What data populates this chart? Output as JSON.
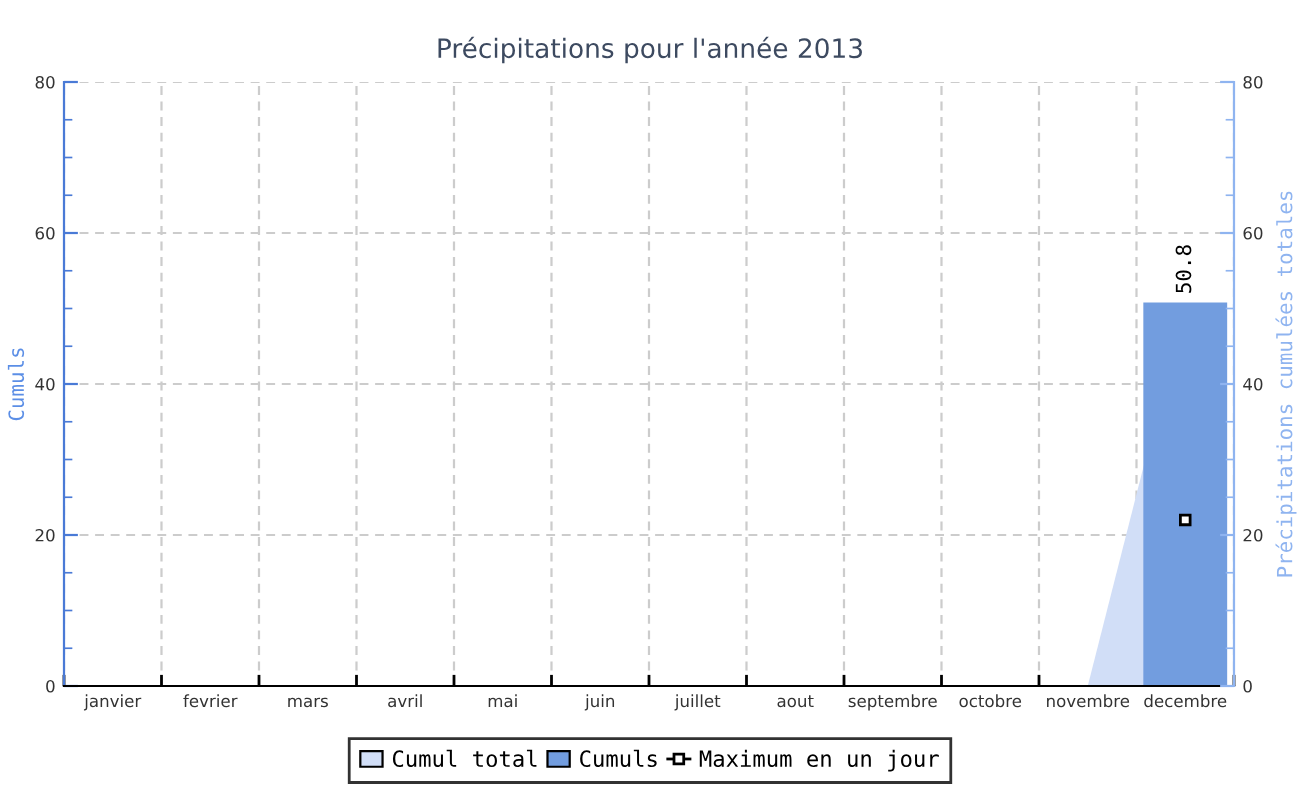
{
  "chart_data": {
    "type": "bar",
    "title": "Précipitations pour l'année 2013",
    "ylabel": "Cumuls",
    "y2label": "Précipitations cumulées totales",
    "categories": [
      "janvier",
      "fevrier",
      "mars",
      "avril",
      "mai",
      "juin",
      "juillet",
      "aout",
      "septembre",
      "octobre",
      "novembre",
      "decembre"
    ],
    "series": [
      {
        "name": "Cumul total",
        "type": "area",
        "color": "#d1def7",
        "values": [
          null,
          null,
          null,
          null,
          null,
          null,
          null,
          null,
          null,
          null,
          0,
          50.8
        ]
      },
      {
        "name": "Cumuls",
        "color": "#729ddf",
        "values": [
          null,
          null,
          null,
          null,
          null,
          null,
          null,
          null,
          null,
          null,
          null,
          50.8
        ],
        "value_labels": [
          null,
          null,
          null,
          null,
          null,
          null,
          null,
          null,
          null,
          null,
          null,
          "50.8"
        ]
      },
      {
        "name": "Maximum en un jour",
        "type": "line",
        "color": "#000000",
        "marker": "square",
        "values": [
          null,
          null,
          null,
          null,
          null,
          null,
          null,
          null,
          null,
          null,
          null,
          22
        ]
      }
    ],
    "ylim": [
      0,
      80
    ],
    "yticks": [
      0,
      {
        "value": 5,
        "label": null
      },
      {
        "value": 10,
        "label": null
      },
      {
        "value": 15,
        "label": null
      },
      20,
      {
        "value": 25,
        "label": null
      },
      {
        "value": 30,
        "label": null
      },
      {
        "value": 35,
        "label": null
      },
      40,
      {
        "value": 45,
        "label": null
      },
      {
        "value": 50,
        "label": null
      },
      {
        "value": 55,
        "label": null
      },
      60,
      {
        "value": 65,
        "label": null
      },
      {
        "value": 70,
        "label": null
      },
      {
        "value": 75,
        "label": null
      },
      80
    ],
    "y2lim": [
      0,
      80
    ],
    "y2ticks": [
      0,
      {
        "value": 5,
        "label": null
      },
      {
        "value": 10,
        "label": null
      },
      {
        "value": 15,
        "label": null
      },
      20,
      {
        "value": 25,
        "label": null
      },
      {
        "value": 30,
        "label": null
      },
      {
        "value": 35,
        "label": null
      },
      40,
      {
        "value": 45,
        "label": null
      },
      {
        "value": 50,
        "label": null
      },
      {
        "value": 55,
        "label": null
      },
      60,
      {
        "value": 65,
        "label": null
      },
      {
        "value": 70,
        "label": null
      },
      {
        "value": 75,
        "label": null
      },
      80
    ],
    "grid": true,
    "legend": "bottom"
  }
}
